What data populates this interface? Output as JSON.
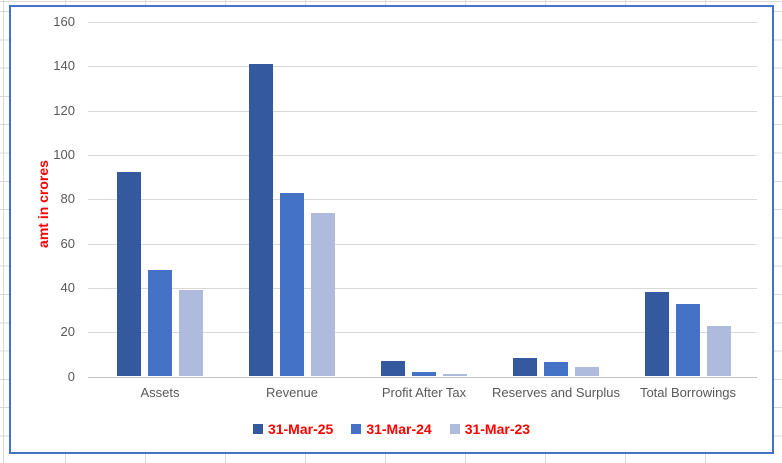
{
  "sheet": {
    "gridline_color": "#D9D9D9"
  },
  "chart": {
    "border_color": "#4472C4",
    "background_color": "#FFFFFF",
    "plot_gridline_color": "#D9D9D9",
    "axis_line_color": "#C1C1C1",
    "tick_label_color": "#595959",
    "category_label_color": "#595959",
    "accent_text_color": "#FF0000"
  },
  "chart_data": {
    "type": "bar",
    "title": "",
    "xlabel": "",
    "ylabel": "amt in crores",
    "ylim": [
      0,
      160
    ],
    "ytick_step": 20,
    "yticks": [
      0,
      20,
      40,
      60,
      80,
      100,
      120,
      140,
      160
    ],
    "grid": true,
    "legend_position": "bottom",
    "categories": [
      "Assets",
      "Revenue",
      "Profit After Tax",
      "Reserves and Surplus",
      "Total Borrowings"
    ],
    "series": [
      {
        "name": "31-Mar-25",
        "color": "#35599E",
        "values": [
          92,
          141,
          7,
          8,
          38
        ]
      },
      {
        "name": "31-Mar-24",
        "color": "#4472C4",
        "values": [
          48,
          82.5,
          2,
          6.5,
          32.5
        ]
      },
      {
        "name": "31-Mar-23",
        "color": "#AFBBDD",
        "values": [
          39,
          73.5,
          0.8,
          4.3,
          22.5
        ]
      }
    ]
  }
}
